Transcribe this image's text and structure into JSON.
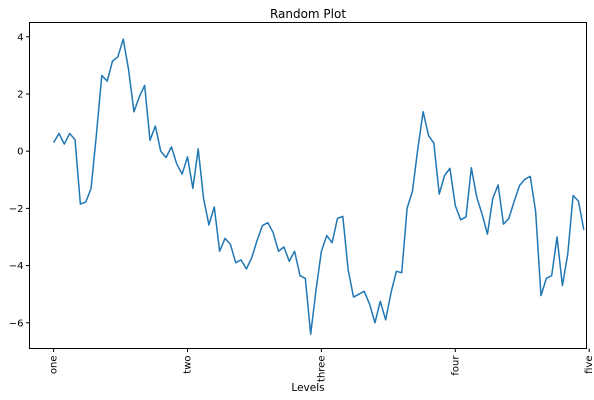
{
  "chart_data": {
    "type": "line",
    "title": "Random Plot",
    "xlabel": "Levels",
    "ylabel": "",
    "ylim": [
      -6.9,
      4.5
    ],
    "xlim": [
      -4.5,
      99.5
    ],
    "yticks": [
      -6,
      -4,
      -2,
      0,
      2,
      4
    ],
    "xticks": [
      0,
      25,
      50,
      75,
      100
    ],
    "xtick_labels": [
      "one",
      "two",
      "three",
      "four",
      "five"
    ],
    "grid": false,
    "line_color": "#1f77b4",
    "series": [
      {
        "values": [
          0.3,
          0.62,
          0.25,
          0.62,
          0.4,
          -1.85,
          -1.78,
          -1.3,
          0.6,
          2.65,
          2.45,
          3.15,
          3.3,
          3.92,
          2.85,
          1.38,
          1.9,
          2.3,
          0.38,
          0.88,
          0.0,
          -0.22,
          0.15,
          -0.45,
          -0.8,
          -0.2,
          -1.3,
          0.08,
          -1.65,
          -2.58,
          -1.95,
          -3.5,
          -3.05,
          -3.25,
          -3.9,
          -3.8,
          -4.12,
          -3.72,
          -3.12,
          -2.6,
          -2.5,
          -2.85,
          -3.5,
          -3.35,
          -3.85,
          -3.5,
          -4.35,
          -4.45,
          -6.4,
          -4.85,
          -3.5,
          -2.95,
          -3.2,
          -2.35,
          -2.28,
          -4.15,
          -5.1,
          -5.0,
          -4.9,
          -5.35,
          -6.0,
          -5.25,
          -5.9,
          -4.95,
          -4.2,
          -4.25,
          -2.0,
          -1.4,
          0.08,
          1.38,
          0.55,
          0.28,
          -1.5,
          -0.85,
          -0.6,
          -1.9,
          -2.4,
          -2.3,
          -0.58,
          -1.6,
          -2.2,
          -2.9,
          -1.65,
          -1.18,
          -2.55,
          -2.35,
          -1.75,
          -1.2,
          -0.98,
          -0.88,
          -2.1,
          -5.05,
          -4.45,
          -4.35,
          -3.0,
          -4.7,
          -3.6,
          -1.55,
          -1.75,
          -2.75
        ]
      }
    ]
  }
}
